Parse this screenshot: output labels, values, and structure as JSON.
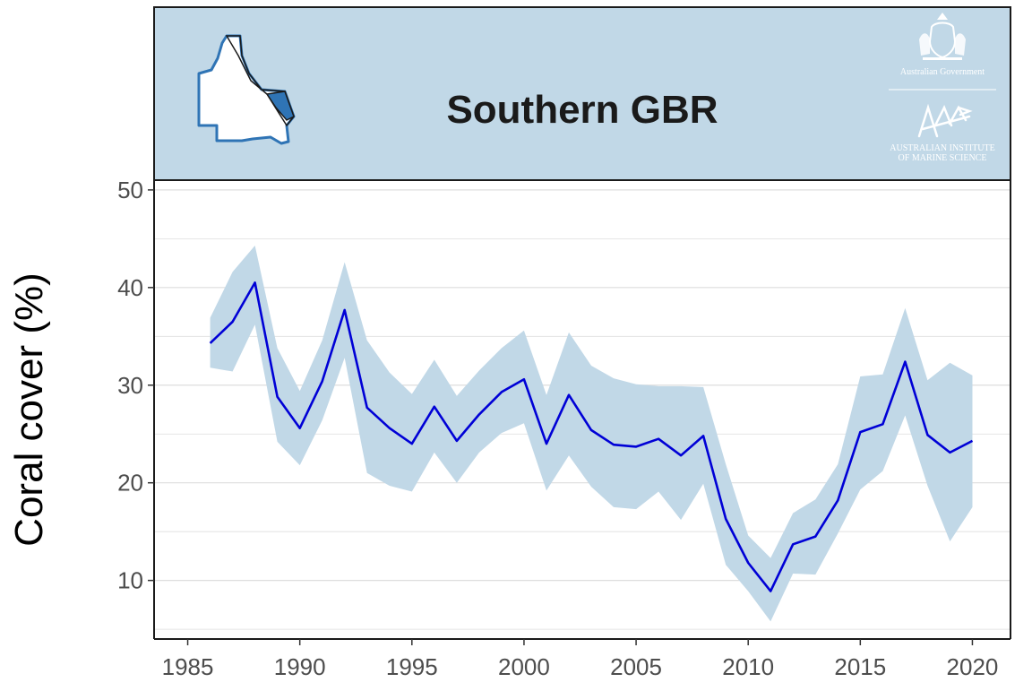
{
  "header": {
    "title": "Southern GBR",
    "logo_gov_text": "Australian Government",
    "logo_aims_line1": "AUSTRALIAN INSTITUTE",
    "logo_aims_line2": "OF MARINE SCIENCE",
    "map_icon": "queensland-map-icon",
    "crest_icon": "coat-of-arms-icon",
    "aims_icon": "aims-logo-icon"
  },
  "colors": {
    "panel": "#c1d8e7",
    "band": "#c1d8e7",
    "line": "#0000d6",
    "map_highlight": "#2f74b5"
  },
  "chart_data": {
    "type": "line",
    "title": "Southern GBR",
    "xlabel": "",
    "ylabel": "Coral cover (%)",
    "xlim": [
      1983.5,
      2021.7
    ],
    "ylim": [
      4,
      51
    ],
    "xticks": [
      1985,
      1990,
      1995,
      2000,
      2005,
      2010,
      2015,
      2020
    ],
    "yticks": [
      10,
      20,
      30,
      40,
      50
    ],
    "grid": "horizontal",
    "x": [
      1986,
      1987,
      1988,
      1989,
      1990,
      1991,
      1992,
      1993,
      1994,
      1995,
      1996,
      1997,
      1998,
      1999,
      2000,
      2001,
      2002,
      2003,
      2004,
      2005,
      2006,
      2007,
      2008,
      2009,
      2010,
      2011,
      2012,
      2013,
      2014,
      2015,
      2016,
      2017,
      2018,
      2019,
      2020
    ],
    "series": [
      {
        "values": [
          34.3,
          36.5,
          40.5,
          28.8,
          25.6,
          30.4,
          37.7,
          27.7,
          25.6,
          24.0,
          27.8,
          24.3,
          27.0,
          29.3,
          30.6,
          24.0,
          29.0,
          25.4,
          23.9,
          23.7,
          24.5,
          22.8,
          24.8,
          16.3,
          11.8,
          8.9,
          13.7,
          14.5,
          18.2,
          25.2,
          26.0,
          32.4,
          24.9,
          23.1,
          24.3
        ],
        "lower": [
          31.8,
          31.4,
          36.2,
          24.2,
          21.8,
          26.4,
          32.8,
          21.0,
          19.7,
          19.1,
          23.1,
          20.0,
          23.1,
          25.1,
          26.1,
          19.2,
          22.8,
          19.6,
          17.5,
          17.3,
          19.1,
          16.2,
          19.9,
          11.6,
          8.9,
          5.8,
          10.7,
          10.6,
          14.8,
          19.3,
          21.2,
          26.9,
          19.7,
          14.0,
          17.5
        ],
        "upper": [
          36.9,
          41.6,
          44.3,
          33.8,
          29.4,
          34.6,
          42.6,
          34.6,
          31.3,
          29.1,
          32.6,
          28.9,
          31.5,
          33.8,
          35.6,
          29.0,
          35.4,
          32.0,
          30.7,
          30.1,
          29.9,
          29.9,
          29.8,
          21.9,
          14.6,
          12.3,
          16.9,
          18.3,
          21.9,
          30.9,
          31.1,
          37.9,
          30.5,
          32.3,
          31.0
        ]
      }
    ]
  }
}
